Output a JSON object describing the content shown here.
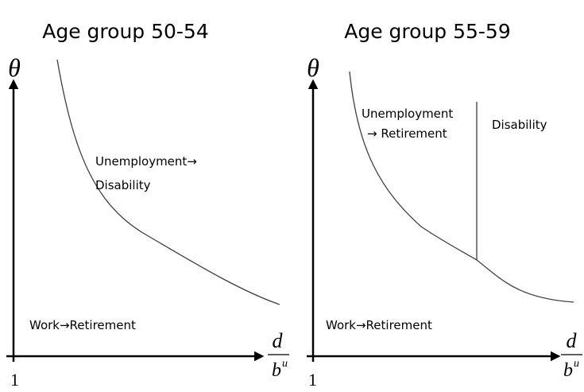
{
  "panels": [
    {
      "title": "Age group 50-54",
      "y_label": "θ",
      "origin_label": "1",
      "x_label": {
        "numerator": "d",
        "denominator": "b",
        "superscript": "u"
      },
      "regions": [
        {
          "lines": [
            "Unemployment→",
            "Disability"
          ]
        },
        {
          "lines": [
            "Work→Retirement"
          ]
        }
      ]
    },
    {
      "title": "Age group 55-59",
      "y_label": "θ",
      "origin_label": "1",
      "x_label": {
        "numerator": "d",
        "denominator": "b",
        "superscript": "u"
      },
      "regions": [
        {
          "lines": [
            "Unemployment",
            "→ Retirement"
          ]
        },
        {
          "lines": [
            "Disability"
          ]
        },
        {
          "lines": [
            "Work→Retirement"
          ]
        }
      ]
    }
  ]
}
